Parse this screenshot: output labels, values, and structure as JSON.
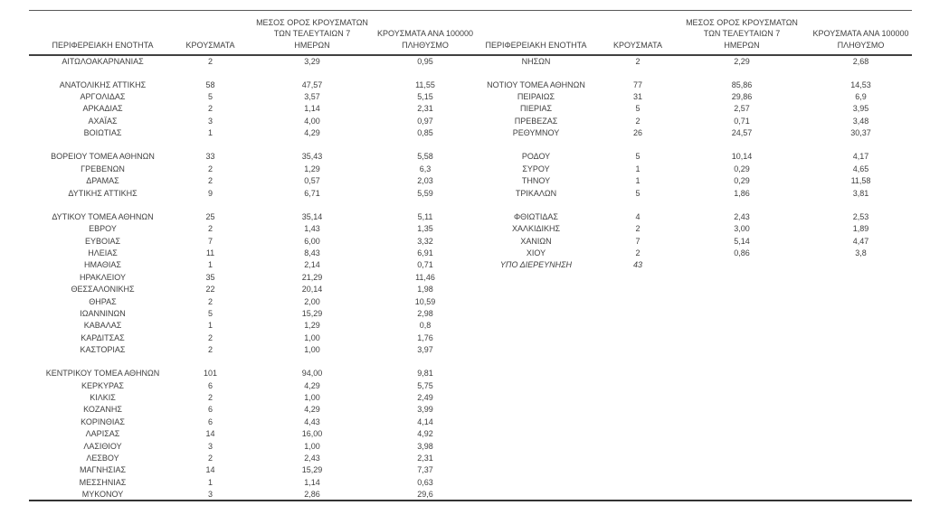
{
  "colors": {
    "text": "#3f3f3f",
    "rule_top": "#595959",
    "rule_header": "#404040",
    "rule_bottom": "#333333",
    "background": "#ffffff"
  },
  "headers": {
    "region": "ΠΕΡΙΦΕΡΕΙΑΚΗ ΕΝΟΤΗΤΑ",
    "cases": "ΚΡΟΥΣΜΑΤΑ",
    "avg7_line1": "ΜΕΣΟΣ ΟΡΟΣ ΚΡΟΥΣΜΑΤΩΝ",
    "avg7_line2": "ΤΩΝ ΤΕΛΕΥΤΑΙΩΝ 7",
    "avg7_line3": "ΗΜΕΡΩΝ",
    "per100k_line1": "ΚΡΟΥΣΜΑΤΑ ΑΝΑ 100000",
    "per100k_line2": "ΠΛΗΘΥΣΜΟ"
  },
  "left_groups": [
    [
      {
        "region": "ΑΙΤΩΛΟΑΚΑΡΝΑΝΙΑΣ",
        "cases": "2",
        "avg7": "3,29",
        "per100k": "0,95"
      }
    ],
    [
      {
        "region": "ΑΝΑΤΟΛΙΚΗΣ ΑΤΤΙΚΗΣ",
        "cases": "58",
        "avg7": "47,57",
        "per100k": "11,55"
      },
      {
        "region": "ΑΡΓΟΛΙΔΑΣ",
        "cases": "5",
        "avg7": "3,57",
        "per100k": "5,15"
      },
      {
        "region": "ΑΡΚΑΔΙΑΣ",
        "cases": "2",
        "avg7": "1,14",
        "per100k": "2,31"
      },
      {
        "region": "ΑΧΑΪΑΣ",
        "cases": "3",
        "avg7": "4,00",
        "per100k": "0,97"
      },
      {
        "region": "ΒΟΙΩΤΙΑΣ",
        "cases": "1",
        "avg7": "4,29",
        "per100k": "0,85"
      }
    ],
    [
      {
        "region": "ΒΟΡΕΙΟΥ ΤΟΜΕΑ ΑΘΗΝΩΝ",
        "cases": "33",
        "avg7": "35,43",
        "per100k": "5,58"
      },
      {
        "region": "ΓΡΕΒΕΝΩΝ",
        "cases": "2",
        "avg7": "1,29",
        "per100k": "6,3"
      },
      {
        "region": "ΔΡΑΜΑΣ",
        "cases": "2",
        "avg7": "0,57",
        "per100k": "2,03"
      },
      {
        "region": "ΔΥΤΙΚΗΣ ΑΤΤΙΚΗΣ",
        "cases": "9",
        "avg7": "6,71",
        "per100k": "5,59"
      }
    ],
    [
      {
        "region": "ΔΥΤΙΚΟΥ ΤΟΜΕΑ ΑΘΗΝΩΝ",
        "cases": "25",
        "avg7": "35,14",
        "per100k": "5,11"
      },
      {
        "region": "ΕΒΡΟΥ",
        "cases": "2",
        "avg7": "1,43",
        "per100k": "1,35"
      },
      {
        "region": "ΕΥΒΟΙΑΣ",
        "cases": "7",
        "avg7": "6,00",
        "per100k": "3,32"
      },
      {
        "region": "ΗΛΕΙΑΣ",
        "cases": "11",
        "avg7": "8,43",
        "per100k": "6,91"
      },
      {
        "region": "ΗΜΑΘΙΑΣ",
        "cases": "1",
        "avg7": "2,14",
        "per100k": "0,71"
      },
      {
        "region": "ΗΡΑΚΛΕΙΟΥ",
        "cases": "35",
        "avg7": "21,29",
        "per100k": "11,46"
      },
      {
        "region": "ΘΕΣΣΑΛΟΝΙΚΗΣ",
        "cases": "22",
        "avg7": "20,14",
        "per100k": "1,98"
      },
      {
        "region": "ΘΗΡΑΣ",
        "cases": "2",
        "avg7": "2,00",
        "per100k": "10,59"
      },
      {
        "region": "ΙΩΑΝΝΙΝΩΝ",
        "cases": "5",
        "avg7": "15,29",
        "per100k": "2,98"
      },
      {
        "region": "ΚΑΒΑΛΑΣ",
        "cases": "1",
        "avg7": "1,29",
        "per100k": "0,8"
      },
      {
        "region": "ΚΑΡΔΙΤΣΑΣ",
        "cases": "2",
        "avg7": "1,00",
        "per100k": "1,76"
      },
      {
        "region": "ΚΑΣΤΟΡΙΑΣ",
        "cases": "2",
        "avg7": "1,00",
        "per100k": "3,97"
      }
    ],
    [
      {
        "region": "ΚΕΝΤΡΙΚΟΥ ΤΟΜΕΑ ΑΘΗΝΩΝ",
        "cases": "101",
        "avg7": "94,00",
        "per100k": "9,81"
      },
      {
        "region": "ΚΕΡΚΥΡΑΣ",
        "cases": "6",
        "avg7": "4,29",
        "per100k": "5,75"
      },
      {
        "region": "ΚΙΛΚΙΣ",
        "cases": "2",
        "avg7": "1,00",
        "per100k": "2,49"
      },
      {
        "region": "ΚΟΖΑΝΗΣ",
        "cases": "6",
        "avg7": "4,29",
        "per100k": "3,99"
      },
      {
        "region": "ΚΟΡΙΝΘΙΑΣ",
        "cases": "6",
        "avg7": "4,43",
        "per100k": "4,14"
      },
      {
        "region": "ΛΑΡΙΣΑΣ",
        "cases": "14",
        "avg7": "16,00",
        "per100k": "4,92"
      },
      {
        "region": "ΛΑΣΙΘΙΟΥ",
        "cases": "3",
        "avg7": "1,00",
        "per100k": "3,98"
      },
      {
        "region": "ΛΕΣΒΟΥ",
        "cases": "2",
        "avg7": "2,43",
        "per100k": "2,31"
      },
      {
        "region": "ΜΑΓΝΗΣΙΑΣ",
        "cases": "14",
        "avg7": "15,29",
        "per100k": "7,37"
      },
      {
        "region": "ΜΕΣΣΗΝΙΑΣ",
        "cases": "1",
        "avg7": "1,14",
        "per100k": "0,63"
      },
      {
        "region": "ΜΥΚΟΝΟΥ",
        "cases": "3",
        "avg7": "2,86",
        "per100k": "29,6"
      }
    ]
  ],
  "right_groups": [
    [
      {
        "region": "ΝΗΣΩΝ",
        "cases": "2",
        "avg7": "2,29",
        "per100k": "2,68"
      }
    ],
    [
      {
        "region": "ΝΟΤΙΟΥ ΤΟΜΕΑ ΑΘΗΝΩΝ",
        "cases": "77",
        "avg7": "85,86",
        "per100k": "14,53"
      },
      {
        "region": "ΠΕΙΡΑΙΩΣ",
        "cases": "31",
        "avg7": "29,86",
        "per100k": "6,9"
      },
      {
        "region": "ΠΙΕΡΙΑΣ",
        "cases": "5",
        "avg7": "2,57",
        "per100k": "3,95"
      },
      {
        "region": "ΠΡΕΒΕΖΑΣ",
        "cases": "2",
        "avg7": "0,71",
        "per100k": "3,48"
      },
      {
        "region": "ΡΕΘΥΜΝΟΥ",
        "cases": "26",
        "avg7": "24,57",
        "per100k": "30,37"
      }
    ],
    [
      {
        "region": "ΡΟΔΟΥ",
        "cases": "5",
        "avg7": "10,14",
        "per100k": "4,17"
      },
      {
        "region": "ΣΥΡΟΥ",
        "cases": "1",
        "avg7": "0,29",
        "per100k": "4,65"
      },
      {
        "region": "ΤΗΝΟΥ",
        "cases": "1",
        "avg7": "0,29",
        "per100k": "11,58"
      },
      {
        "region": "ΤΡΙΚΑΛΩΝ",
        "cases": "5",
        "avg7": "1,86",
        "per100k": "3,81"
      }
    ],
    [
      {
        "region": "ΦΘΙΩΤΙΔΑΣ",
        "cases": "4",
        "avg7": "2,43",
        "per100k": "2,53"
      },
      {
        "region": "ΧΑΛΚΙΔΙΚΗΣ",
        "cases": "2",
        "avg7": "3,00",
        "per100k": "1,89"
      },
      {
        "region": "ΧΑΝΙΩΝ",
        "cases": "7",
        "avg7": "5,14",
        "per100k": "4,47"
      },
      {
        "region": "ΧΙΟΥ",
        "cases": "2",
        "avg7": "0,86",
        "per100k": "3,8"
      },
      {
        "region": "ΥΠΟ ΔΙΕΡΕΥΝΗΣΗ",
        "cases": "43",
        "avg7": "",
        "per100k": "",
        "italic": true
      }
    ]
  ]
}
